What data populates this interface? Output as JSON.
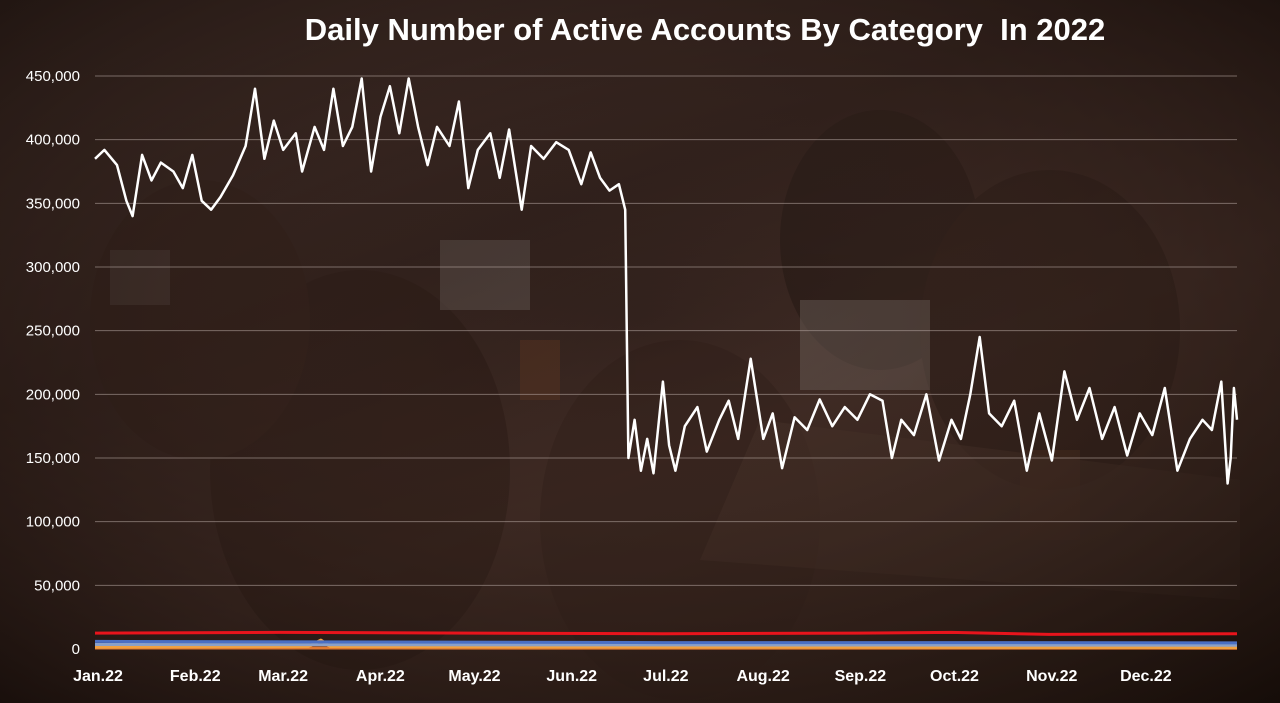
{
  "chart_data": {
    "type": "line",
    "title": "Daily Number of Active Accounts By Category  In 2022",
    "xlabel": "",
    "ylabel": "",
    "x_range": [
      "2022-01-01",
      "2022-12-31"
    ],
    "xticks": [
      "Jan.22",
      "Feb.22",
      "Mar.22",
      "Apr.22",
      "May.22",
      "Jun.22",
      "Jul.22",
      "Aug.22",
      "Sep.22",
      "Oct.22",
      "Nov.22",
      "Dec.22"
    ],
    "yticks": [
      "0",
      "50,000",
      "100,000",
      "150,000",
      "200,000",
      "250,000",
      "300,000",
      "350,000",
      "400,000",
      "450,000"
    ],
    "ylim": [
      0,
      450000
    ],
    "grid": true,
    "legend": "none",
    "series": [
      {
        "color": "#ffffff",
        "points": [
          [
            "2022-01-01",
            385000
          ],
          [
            "2022-01-04",
            392000
          ],
          [
            "2022-01-08",
            380000
          ],
          [
            "2022-01-11",
            352000
          ],
          [
            "2022-01-13",
            340000
          ],
          [
            "2022-01-16",
            388000
          ],
          [
            "2022-01-19",
            368000
          ],
          [
            "2022-01-22",
            382000
          ],
          [
            "2022-01-26",
            375000
          ],
          [
            "2022-01-29",
            362000
          ],
          [
            "2022-02-01",
            388000
          ],
          [
            "2022-02-04",
            352000
          ],
          [
            "2022-02-07",
            345000
          ],
          [
            "2022-02-10",
            355000
          ],
          [
            "2022-02-14",
            372000
          ],
          [
            "2022-02-18",
            395000
          ],
          [
            "2022-02-21",
            440000
          ],
          [
            "2022-02-24",
            385000
          ],
          [
            "2022-02-27",
            415000
          ],
          [
            "2022-03-02",
            392000
          ],
          [
            "2022-03-06",
            405000
          ],
          [
            "2022-03-08",
            375000
          ],
          [
            "2022-03-12",
            410000
          ],
          [
            "2022-03-15",
            392000
          ],
          [
            "2022-03-18",
            440000
          ],
          [
            "2022-03-21",
            395000
          ],
          [
            "2022-03-24",
            410000
          ],
          [
            "2022-03-27",
            448000
          ],
          [
            "2022-03-30",
            375000
          ],
          [
            "2022-04-02",
            418000
          ],
          [
            "2022-04-05",
            442000
          ],
          [
            "2022-04-08",
            405000
          ],
          [
            "2022-04-11",
            448000
          ],
          [
            "2022-04-14",
            410000
          ],
          [
            "2022-04-17",
            380000
          ],
          [
            "2022-04-20",
            410000
          ],
          [
            "2022-04-24",
            395000
          ],
          [
            "2022-04-27",
            430000
          ],
          [
            "2022-04-30",
            362000
          ],
          [
            "2022-05-03",
            392000
          ],
          [
            "2022-05-07",
            405000
          ],
          [
            "2022-05-10",
            370000
          ],
          [
            "2022-05-13",
            408000
          ],
          [
            "2022-05-17",
            345000
          ],
          [
            "2022-05-20",
            395000
          ],
          [
            "2022-05-24",
            385000
          ],
          [
            "2022-05-28",
            398000
          ],
          [
            "2022-06-01",
            392000
          ],
          [
            "2022-06-05",
            365000
          ],
          [
            "2022-06-08",
            390000
          ],
          [
            "2022-06-11",
            370000
          ],
          [
            "2022-06-14",
            360000
          ],
          [
            "2022-06-17",
            365000
          ],
          [
            "2022-06-19",
            345000
          ],
          [
            "2022-06-20",
            150000
          ],
          [
            "2022-06-22",
            180000
          ],
          [
            "2022-06-24",
            140000
          ],
          [
            "2022-06-26",
            165000
          ],
          [
            "2022-06-28",
            138000
          ],
          [
            "2022-07-01",
            210000
          ],
          [
            "2022-07-03",
            160000
          ],
          [
            "2022-07-05",
            140000
          ],
          [
            "2022-07-08",
            175000
          ],
          [
            "2022-07-12",
            190000
          ],
          [
            "2022-07-15",
            155000
          ],
          [
            "2022-07-19",
            180000
          ],
          [
            "2022-07-22",
            195000
          ],
          [
            "2022-07-25",
            165000
          ],
          [
            "2022-07-29",
            228000
          ],
          [
            "2022-08-02",
            165000
          ],
          [
            "2022-08-05",
            185000
          ],
          [
            "2022-08-08",
            142000
          ],
          [
            "2022-08-12",
            182000
          ],
          [
            "2022-08-16",
            172000
          ],
          [
            "2022-08-20",
            196000
          ],
          [
            "2022-08-24",
            175000
          ],
          [
            "2022-08-28",
            190000
          ],
          [
            "2022-09-01",
            180000
          ],
          [
            "2022-09-05",
            200000
          ],
          [
            "2022-09-09",
            195000
          ],
          [
            "2022-09-12",
            150000
          ],
          [
            "2022-09-15",
            180000
          ],
          [
            "2022-09-19",
            168000
          ],
          [
            "2022-09-23",
            200000
          ],
          [
            "2022-09-27",
            148000
          ],
          [
            "2022-10-01",
            180000
          ],
          [
            "2022-10-04",
            165000
          ],
          [
            "2022-10-07",
            200000
          ],
          [
            "2022-10-10",
            245000
          ],
          [
            "2022-10-13",
            185000
          ],
          [
            "2022-10-17",
            175000
          ],
          [
            "2022-10-21",
            195000
          ],
          [
            "2022-10-25",
            140000
          ],
          [
            "2022-10-29",
            185000
          ],
          [
            "2022-11-02",
            148000
          ],
          [
            "2022-11-06",
            218000
          ],
          [
            "2022-11-10",
            180000
          ],
          [
            "2022-11-14",
            205000
          ],
          [
            "2022-11-18",
            165000
          ],
          [
            "2022-11-22",
            190000
          ],
          [
            "2022-11-26",
            152000
          ],
          [
            "2022-11-30",
            185000
          ],
          [
            "2022-12-04",
            168000
          ],
          [
            "2022-12-08",
            205000
          ],
          [
            "2022-12-12",
            140000
          ],
          [
            "2022-12-16",
            165000
          ],
          [
            "2022-12-20",
            180000
          ],
          [
            "2022-12-23",
            172000
          ],
          [
            "2022-12-26",
            210000
          ],
          [
            "2022-12-28",
            130000
          ],
          [
            "2022-12-29",
            150000
          ],
          [
            "2022-12-30",
            205000
          ],
          [
            "2022-12-31",
            180000
          ]
        ]
      },
      {
        "color": "#e8141c",
        "points": [
          [
            "2022-01-01",
            12500
          ],
          [
            "2022-03-01",
            13000
          ],
          [
            "2022-05-01",
            12500
          ],
          [
            "2022-07-01",
            12000
          ],
          [
            "2022-09-01",
            12500
          ],
          [
            "2022-10-01",
            13000
          ],
          [
            "2022-11-01",
            11500
          ],
          [
            "2022-12-31",
            12000
          ]
        ]
      },
      {
        "color": "#4a6fc4",
        "points": [
          [
            "2022-01-01",
            6000
          ],
          [
            "2022-04-01",
            5500
          ],
          [
            "2022-07-01",
            5000
          ],
          [
            "2022-10-01",
            5000
          ],
          [
            "2022-12-31",
            4800
          ]
        ]
      },
      {
        "color": "#8aa0c8",
        "points": [
          [
            "2022-01-01",
            3500
          ],
          [
            "2022-06-01",
            3200
          ],
          [
            "2022-12-31",
            3000
          ]
        ]
      },
      {
        "color": "#f0a040",
        "points": [
          [
            "2022-01-01",
            1500
          ],
          [
            "2022-03-10",
            2000
          ],
          [
            "2022-03-14",
            7000
          ],
          [
            "2022-03-17",
            2000
          ],
          [
            "2022-07-01",
            1500
          ],
          [
            "2022-12-31",
            1200
          ]
        ]
      },
      {
        "color": "#e07830",
        "points": [
          [
            "2022-01-01",
            800
          ],
          [
            "2022-06-01",
            700
          ],
          [
            "2022-12-31",
            600
          ]
        ]
      }
    ]
  }
}
